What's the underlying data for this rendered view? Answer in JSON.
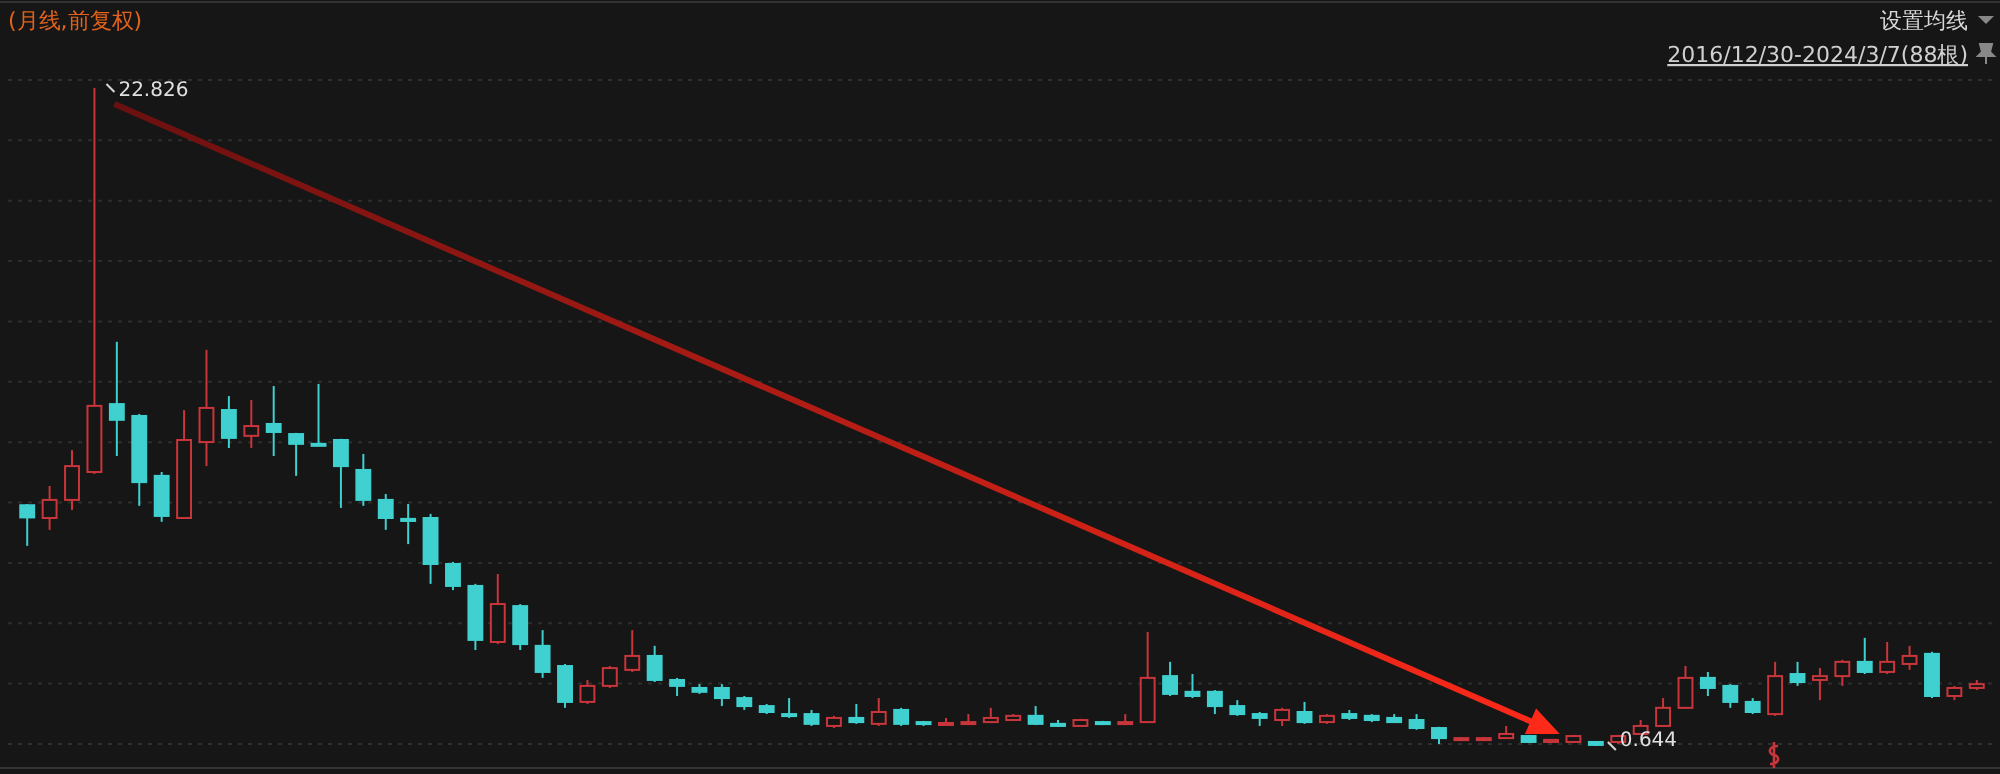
{
  "chart_data": {
    "type": "candlestick",
    "title": "(月线,前复权)",
    "subtitle": "2016/12/30-2024/3/7(88根)",
    "annotations": [
      "设置均线",
      "22.826",
      "0.644"
    ],
    "grid": true,
    "categories": [
      null,
      null,
      null,
      null,
      null,
      null,
      null,
      null,
      null,
      null,
      null,
      null,
      null,
      null,
      null,
      null,
      null,
      null,
      null,
      null,
      null,
      null,
      null,
      null,
      null,
      null,
      null,
      null,
      null,
      null,
      null,
      null,
      null,
      null,
      null,
      null,
      null,
      null,
      null,
      null,
      null,
      null,
      null,
      null,
      null,
      null,
      null,
      null,
      null,
      null,
      null,
      null,
      null,
      null,
      null,
      null,
      null,
      null,
      null,
      null,
      null,
      null,
      null,
      null,
      null,
      null,
      null,
      null,
      null,
      null,
      null,
      null,
      null,
      null,
      null,
      null,
      null,
      null,
      null,
      null,
      null,
      null,
      null,
      null,
      null,
      null,
      null,
      null
    ],
    "ohlc": [
      [
        8.76,
        8.8,
        7.39,
        8.35
      ],
      [
        8.33,
        9.41,
        7.93,
        8.94
      ],
      [
        8.94,
        10.62,
        8.6,
        10.08
      ],
      [
        9.88,
        22.826,
        9.81,
        12.11
      ],
      [
        12.17,
        14.27,
        10.42,
        11.64
      ],
      [
        11.77,
        11.84,
        8.74,
        9.54
      ],
      [
        9.75,
        9.88,
        8.2,
        8.4
      ],
      [
        8.33,
        11.97,
        8.3,
        10.96
      ],
      [
        10.89,
        14.0,
        10.08,
        12.04
      ],
      [
        11.97,
        12.44,
        10.69,
        11.03
      ],
      [
        11.1,
        12.31,
        10.69,
        11.43
      ],
      [
        11.5,
        12.78,
        10.42,
        11.23
      ],
      [
        11.16,
        11.2,
        9.75,
        10.83
      ],
      [
        10.83,
        12.85,
        10.76,
        10.79
      ],
      [
        10.96,
        11.0,
        8.67,
        10.08
      ],
      [
        9.95,
        10.49,
        8.74,
        8.94
      ],
      [
        8.94,
        9.14,
        7.93,
        8.33
      ],
      [
        8.3,
        8.8,
        7.45,
        8.23
      ],
      [
        8.33,
        8.47,
        6.11,
        6.78
      ],
      [
        6.78,
        6.85,
        5.9,
        6.04
      ],
      [
        6.04,
        6.11,
        3.88,
        4.22
      ],
      [
        4.15,
        6.44,
        4.08,
        5.43
      ],
      [
        5.36,
        5.43,
        3.88,
        4.08
      ],
      [
        4.02,
        4.55,
        2.94,
        3.14
      ],
      [
        3.34,
        3.41,
        1.93,
        2.13
      ],
      [
        2.13,
        2.87,
        2.06,
        2.67
      ],
      [
        2.67,
        3.34,
        2.6,
        3.27
      ],
      [
        3.21,
        4.55,
        3.14,
        3.68
      ],
      [
        3.68,
        4.02,
        2.8,
        2.87
      ],
      [
        2.87,
        2.94,
        2.33,
        2.67
      ],
      [
        2.6,
        2.73,
        2.4,
        2.47
      ],
      [
        2.6,
        2.73,
        1.99,
        2.26
      ],
      [
        2.26,
        2.33,
        1.86,
        1.99
      ],
      [
        1.99,
        2.06,
        1.72,
        1.79
      ],
      [
        1.72,
        2.26,
        1.59,
        1.66
      ],
      [
        1.72,
        1.86,
        1.32,
        1.39
      ],
      [
        1.32,
        1.66,
        1.25,
        1.59
      ],
      [
        1.59,
        2.06,
        1.39,
        1.45
      ],
      [
        1.39,
        2.26,
        1.32,
        1.79
      ],
      [
        1.86,
        1.93,
        1.32,
        1.39
      ],
      [
        1.45,
        1.49,
        1.32,
        1.39
      ],
      [
        1.39,
        1.59,
        1.35,
        1.42
      ],
      [
        1.39,
        1.72,
        1.35,
        1.45
      ],
      [
        1.45,
        1.93,
        1.42,
        1.59
      ],
      [
        1.52,
        1.72,
        1.49,
        1.66
      ],
      [
        1.66,
        1.99,
        1.35,
        1.39
      ],
      [
        1.39,
        1.52,
        1.29,
        1.32
      ],
      [
        1.32,
        1.56,
        1.29,
        1.52
      ],
      [
        1.45,
        1.49,
        1.35,
        1.39
      ],
      [
        1.42,
        1.72,
        1.39,
        1.45
      ],
      [
        1.45,
        4.49,
        1.42,
        2.94
      ],
      [
        3.0,
        3.48,
        2.33,
        2.4
      ],
      [
        2.47,
        3.07,
        2.26,
        2.33
      ],
      [
        2.47,
        2.53,
        1.72,
        1.99
      ],
      [
        1.99,
        2.19,
        1.66,
        1.72
      ],
      [
        1.72,
        1.79,
        1.32,
        1.59
      ],
      [
        1.52,
        1.93,
        1.32,
        1.86
      ],
      [
        1.79,
        2.13,
        1.39,
        1.45
      ],
      [
        1.45,
        1.72,
        1.39,
        1.66
      ],
      [
        1.72,
        1.86,
        1.52,
        1.59
      ],
      [
        1.66,
        1.72,
        1.45,
        1.52
      ],
      [
        1.59,
        1.72,
        1.42,
        1.45
      ],
      [
        1.52,
        1.72,
        1.19,
        1.25
      ],
      [
        1.25,
        1.29,
        0.71,
        0.91
      ],
      [
        0.88,
        0.95,
        0.85,
        0.91
      ],
      [
        0.88,
        0.95,
        0.85,
        0.91
      ],
      [
        0.91,
        1.32,
        0.88,
        1.05
      ],
      [
        0.98,
        1.02,
        0.75,
        0.78
      ],
      [
        0.78,
        0.88,
        0.75,
        0.85
      ],
      [
        0.78,
        1.02,
        0.75,
        0.98
      ],
      [
        0.78,
        0.81,
        0.644,
        0.68
      ],
      [
        0.78,
        1.02,
        0.71,
        0.98
      ],
      [
        1.05,
        1.52,
        1.02,
        1.32
      ],
      [
        1.32,
        2.26,
        1.29,
        1.93
      ],
      [
        1.93,
        3.34,
        1.9,
        2.94
      ],
      [
        2.94,
        3.14,
        2.33,
        2.6
      ],
      [
        2.67,
        2.73,
        1.93,
        2.13
      ],
      [
        2.13,
        2.26,
        1.72,
        1.79
      ],
      [
        1.72,
        3.48,
        1.66,
        3.0
      ],
      [
        3.07,
        3.48,
        2.67,
        2.8
      ],
      [
        2.87,
        3.27,
        2.19,
        3.0
      ],
      [
        3.0,
        3.55,
        2.67,
        3.48
      ],
      [
        3.48,
        4.29,
        3.07,
        3.14
      ],
      [
        3.14,
        4.15,
        3.07,
        3.48
      ],
      [
        3.41,
        4.02,
        3.21,
        3.68
      ],
      [
        3.75,
        3.82,
        2.26,
        2.33
      ],
      [
        2.33,
        2.67,
        2.19,
        2.6
      ],
      [
        2.6,
        2.87,
        2.53,
        2.73
      ]
    ]
  }
}
